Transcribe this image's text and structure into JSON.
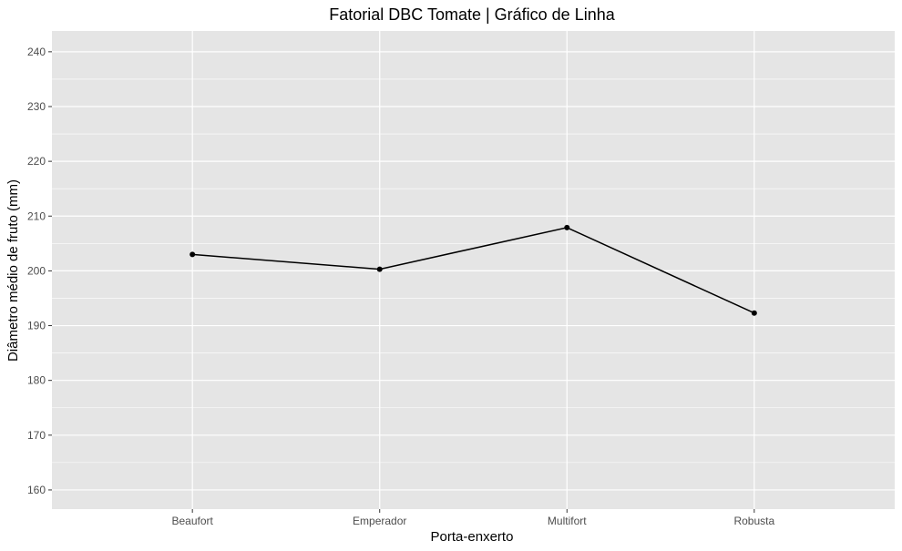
{
  "chart_data": {
    "type": "line",
    "title": "Fatorial DBC Tomate | Gráfico de Linha",
    "xlabel": "Porta-enxerto",
    "ylabel": "Diâmetro médio de fruto (mm)",
    "categories": [
      "Beaufort",
      "Emperador",
      "Multifort",
      "Robusta"
    ],
    "values": [
      203.0,
      200.3,
      207.9,
      192.3
    ],
    "ylim": [
      156.5,
      243.8
    ],
    "yticks": [
      160,
      170,
      180,
      190,
      200,
      210,
      220,
      230,
      240
    ],
    "grid": true,
    "legend": "none",
    "colors": {
      "panel": "#e5e5e5",
      "grid": "#ffffff",
      "line": "#000000",
      "tick_label": "#4d4d4d"
    }
  }
}
